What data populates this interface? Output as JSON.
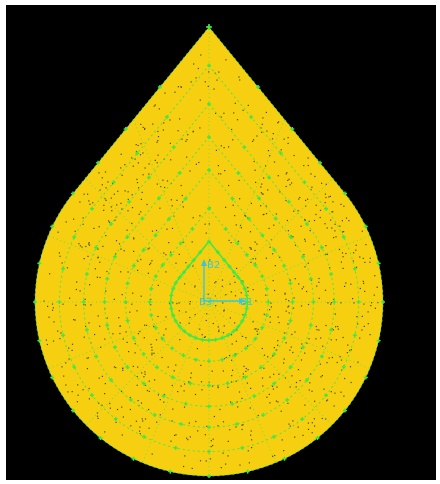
{
  "viewport": {
    "background": "#000000",
    "fill_color": "#f5cf10",
    "node_color": "#3ee84a",
    "speck_color": "#4d4a12",
    "axis_color": "#36c7e0"
  },
  "axes": {
    "x_label": "B1",
    "y_label": "B2",
    "origin_label": "B3"
  }
}
